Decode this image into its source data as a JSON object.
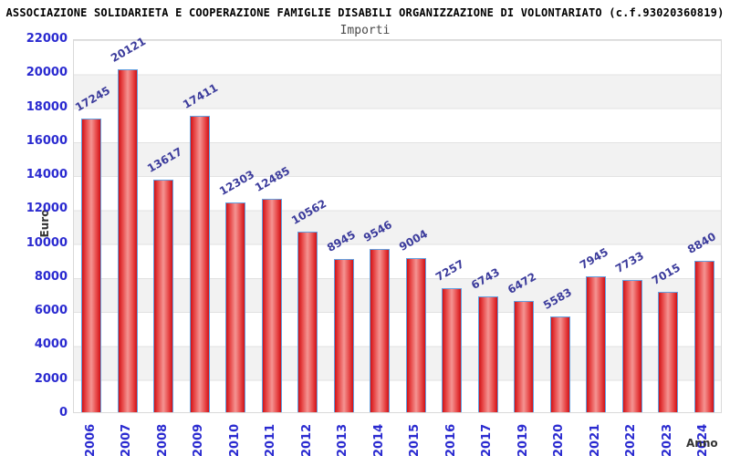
{
  "header": {
    "title": "ASSOCIAZIONE SOLIDARIETA E COOPERAZIONE FAMIGLIE DISABILI ORGANIZZAZIONE DI VOLONTARIATO (c.f.93020360819)",
    "subtitle": "Importi"
  },
  "chart_data": {
    "type": "bar",
    "title": "ASSOCIAZIONE SOLIDARIETA E COOPERAZIONE FAMIGLIE DISABILI ORGANIZZAZIONE DI VOLONTARIATO (c.f.93020360819)",
    "subtitle": "Importi",
    "xlabel": "Anno",
    "ylabel": "Euro",
    "categories": [
      "2006",
      "2007",
      "2008",
      "2009",
      "2010",
      "2011",
      "2012",
      "2013",
      "2014",
      "2015",
      "2016",
      "2017",
      "2019",
      "2020",
      "2021",
      "2022",
      "2023",
      "2024"
    ],
    "values": [
      17245,
      20121,
      13617,
      17411,
      12303,
      12485,
      10562,
      8945,
      9546,
      9004,
      7257,
      6743,
      6472,
      5583,
      7945,
      7733,
      7015,
      8840
    ],
    "ylim": [
      0,
      22000
    ],
    "yticks": [
      0,
      2000,
      4000,
      6000,
      8000,
      10000,
      12000,
      14000,
      16000,
      18000,
      20000,
      22000
    ],
    "grid": "horizontal alternating bands, light gridlines every 2000",
    "legend": "none",
    "value_labels": "above bars, rotated -30deg",
    "colors": {
      "bar_edge": "#d01216",
      "bar_center": "#f49492",
      "bar_border": "#62a0e0",
      "axis_tick_label": "#2a2ad0",
      "value_label": "#3c3c9c",
      "band_gray": "#f2f2f2",
      "gridline": "#e2e2e2",
      "title": "#000000",
      "subtitle": "#4a4a4a",
      "axis_title": "#333333"
    }
  }
}
